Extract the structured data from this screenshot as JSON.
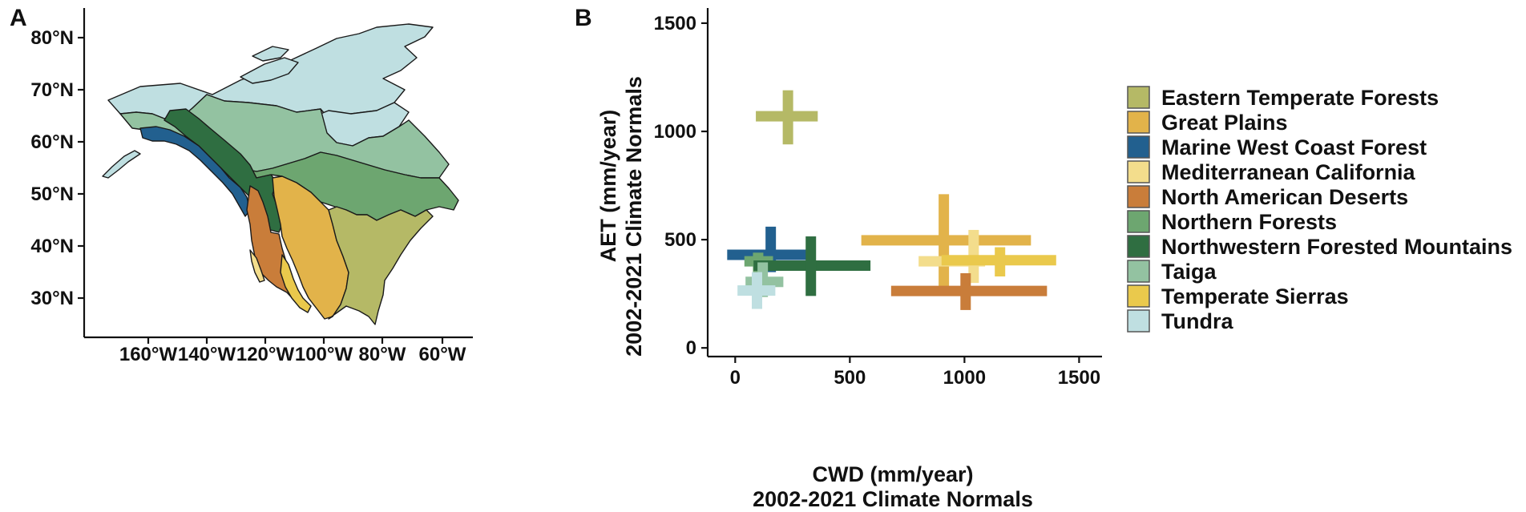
{
  "panels": {
    "a": {
      "letter": "A",
      "lat_ticks": [
        "80°N",
        "70°N",
        "60°N",
        "50°N",
        "40°N",
        "30°N"
      ],
      "lon_ticks": [
        "160°W",
        "140°W",
        "120°W",
        "100°W",
        "80°W",
        "60°W"
      ]
    },
    "b": {
      "letter": "B"
    }
  },
  "legend": [
    {
      "name": "Eastern Temperate Forests",
      "color": "#b5b966"
    },
    {
      "name": "Great Plains",
      "color": "#e2b34a"
    },
    {
      "name": "Marine West Coast Forest",
      "color": "#22608f"
    },
    {
      "name": "Mediterranean California",
      "color": "#f3dd8c"
    },
    {
      "name": "North American Deserts",
      "color": "#c97d3a"
    },
    {
      "name": "Northern Forests",
      "color": "#6da670"
    },
    {
      "name": "Northwestern Forested Mountains",
      "color": "#2f6e41"
    },
    {
      "name": "Taiga",
      "color": "#93c2a1"
    },
    {
      "name": "Temperate Sierras",
      "color": "#eac94c"
    },
    {
      "name": "Tundra",
      "color": "#bfdfe1"
    }
  ],
  "chart_data": {
    "type": "scatter",
    "title": "",
    "xlabel": "CWD (mm/year)",
    "xlabel2": "2002-2021 Climate Normals",
    "ylabel": "AET (mm/year)",
    "ylabel2": "2002-2021 Climate Normals",
    "xlim": [
      -120,
      1600
    ],
    "ylim": [
      -40,
      1570
    ],
    "x_ticks": [
      0,
      500,
      1000,
      1500
    ],
    "y_ticks": [
      0,
      500,
      1000,
      1500
    ],
    "marker": "crossbar (mean with range in x and y)",
    "series": [
      {
        "name": "Eastern Temperate Forests",
        "x": 230,
        "y": 1070,
        "x_min": 90,
        "x_max": 360,
        "y_min": 940,
        "y_max": 1190
      },
      {
        "name": "Great Plains",
        "x": 910,
        "y": 497,
        "x_min": 550,
        "x_max": 1290,
        "y_min": 285,
        "y_max": 710
      },
      {
        "name": "Marine West Coast Forest",
        "x": 155,
        "y": 430,
        "x_min": -35,
        "x_max": 340,
        "y_min": 350,
        "y_max": 560
      },
      {
        "name": "Mediterranean California",
        "x": 1040,
        "y": 400,
        "x_min": 800,
        "x_max": 1090,
        "y_min": 300,
        "y_max": 545
      },
      {
        "name": "North American Deserts",
        "x": 1005,
        "y": 263,
        "x_min": 680,
        "x_max": 1360,
        "y_min": 175,
        "y_max": 345
      },
      {
        "name": "Northern Forests",
        "x": 100,
        "y": 400,
        "x_min": 40,
        "x_max": 165,
        "y_min": 330,
        "y_max": 440
      },
      {
        "name": "Northwestern Forested Mountains",
        "x": 330,
        "y": 380,
        "x_min": 80,
        "x_max": 590,
        "y_min": 240,
        "y_max": 515
      },
      {
        "name": "Taiga",
        "x": 120,
        "y": 305,
        "x_min": 45,
        "x_max": 210,
        "y_min": 235,
        "y_max": 395
      },
      {
        "name": "Temperate Sierras",
        "x": 1155,
        "y": 405,
        "x_min": 900,
        "x_max": 1400,
        "y_min": 330,
        "y_max": 465
      },
      {
        "name": "Tundra",
        "x": 95,
        "y": 265,
        "x_min": 10,
        "x_max": 175,
        "y_min": 180,
        "y_max": 350
      }
    ]
  }
}
